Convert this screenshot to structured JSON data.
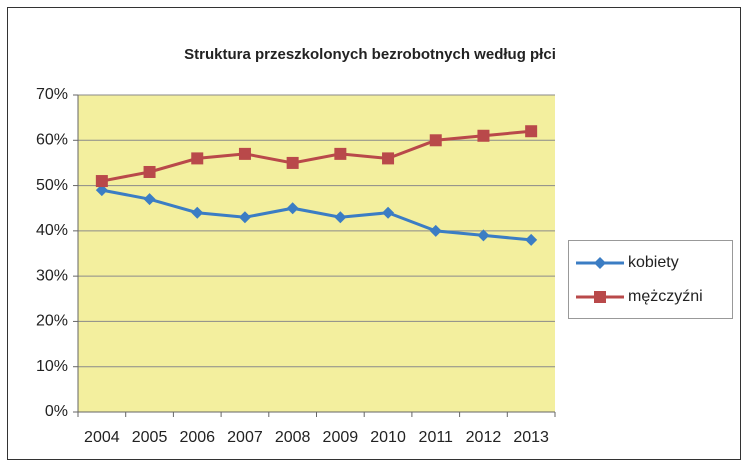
{
  "chart_data": {
    "type": "line",
    "title": "Struktura przeszkolonych bezrobotnych według płci",
    "categories": [
      "2004",
      "2005",
      "2006",
      "2007",
      "2008",
      "2009",
      "2010",
      "2011",
      "2012",
      "2013"
    ],
    "series": [
      {
        "name": "kobiety",
        "color": "#3b7dc4",
        "marker": "diamond",
        "values": [
          49,
          47,
          44,
          43,
          45,
          43,
          44,
          40,
          39,
          38
        ]
      },
      {
        "name": "mężczyźni",
        "color": "#b9494a",
        "marker": "square",
        "values": [
          51,
          53,
          56,
          57,
          55,
          57,
          56,
          60,
          61,
          62
        ]
      }
    ],
    "ylim": [
      0,
      70
    ],
    "yticks": [
      {
        "value": 0,
        "label": "0%"
      },
      {
        "value": 10,
        "label": "10%"
      },
      {
        "value": 20,
        "label": "20%"
      },
      {
        "value": 30,
        "label": "30%"
      },
      {
        "value": 40,
        "label": "40%"
      },
      {
        "value": 50,
        "label": "50%"
      },
      {
        "value": 60,
        "label": "60%"
      },
      {
        "value": 70,
        "label": "70%"
      }
    ],
    "grid": true,
    "legend": "right",
    "plot_background": "#f3ef9e"
  }
}
